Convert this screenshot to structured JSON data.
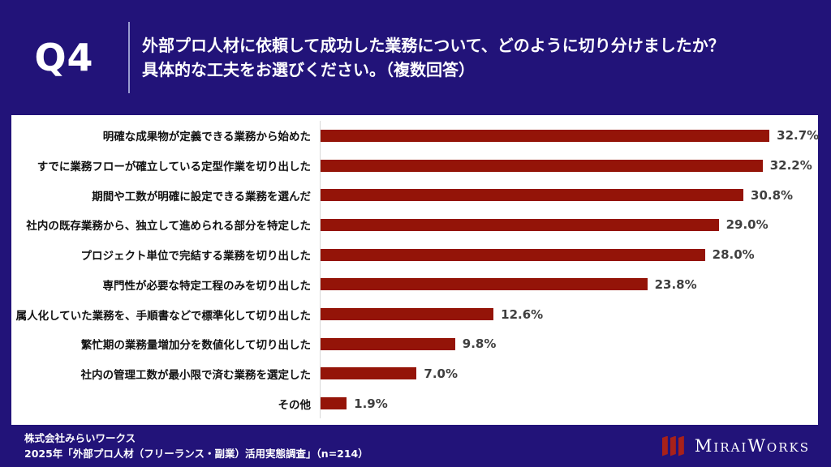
{
  "header": {
    "question_number": "Q4",
    "title_line1": "外部プロ人材に依頼して成功した業務について、どのように切り分けましたか？",
    "title_line2": "具体的な工夫をお選びください。（複数回答）"
  },
  "chart_data": {
    "type": "bar",
    "orientation": "horizontal",
    "title": "",
    "xlabel": "",
    "ylabel": "",
    "categories": [
      "明確な成果物が定義できる業務から始めた",
      "すでに業務フローが確立している定型作業を切り出した",
      "期間や工数が明確に設定できる業務を選んだ",
      "社内の既存業務から、独立して進められる部分を特定した",
      "プロジェクト単位で完結する業務を切り出した",
      "専門性が必要な特定工程のみを切り出した",
      "属人化していた業務を、手順書などで標準化して切り出した",
      "繁忙期の業務量増加分を数値化して切り出した",
      "社内の管理工数が最小限で済む業務を選定した",
      "その他"
    ],
    "values": [
      32.7,
      32.2,
      30.8,
      29.0,
      28.0,
      23.8,
      12.6,
      9.8,
      7.0,
      1.9
    ],
    "unit": "%",
    "xlim": [
      0,
      36
    ],
    "grid": false,
    "legend": false,
    "bar_color": "#941408",
    "value_label_color": "#3f3f3f"
  },
  "footer": {
    "source_line1": "株式会社みらいワークス",
    "source_line2": "2025年「外部プロ人材（フリーランス・副業）活用実態調査」（n=214）",
    "logo_text": "MiraiWorks"
  },
  "colors": {
    "background": "#221379",
    "panel": "#ffffff",
    "bar": "#941408",
    "logo_red": "#a8211a",
    "header_divider": "#9a9cd0"
  }
}
